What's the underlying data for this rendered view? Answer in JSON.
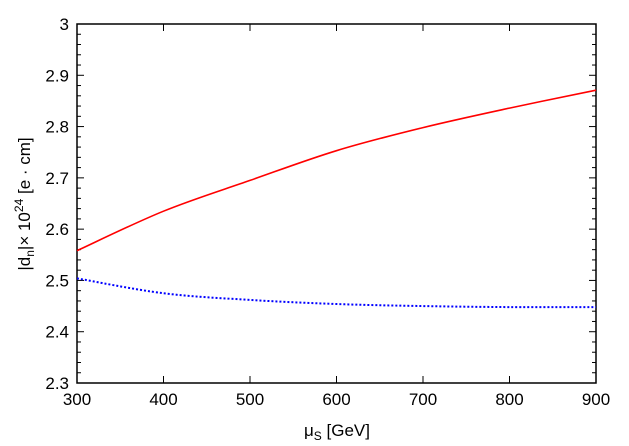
{
  "chart_data": {
    "type": "line",
    "title": "",
    "xlabel": "μ",
    "xlabel_sub": "S",
    "xlabel_unit": " [GeV]",
    "ylabel_parts": [
      "|d",
      "n",
      "|× 10",
      "24",
      " [e · cm]"
    ],
    "xlim": [
      300,
      900
    ],
    "ylim": [
      2.3,
      3.0
    ],
    "xticks": [
      300,
      400,
      500,
      600,
      700,
      800,
      900
    ],
    "yticks": [
      2.3,
      2.4,
      2.5,
      2.6,
      2.7,
      2.8,
      2.9,
      3
    ],
    "grid": false,
    "series": [
      {
        "color": "#ff0000",
        "style": "solid",
        "x": [
          300,
          400,
          500,
          600,
          700,
          800,
          900
        ],
        "y": [
          2.558,
          2.635,
          2.695,
          2.753,
          2.798,
          2.836,
          2.871
        ]
      },
      {
        "color": "#0000ff",
        "style": "dotted",
        "x": [
          300,
          400,
          500,
          600,
          700,
          800,
          900
        ],
        "y": [
          2.504,
          2.475,
          2.462,
          2.454,
          2.45,
          2.448,
          2.448
        ]
      }
    ]
  }
}
